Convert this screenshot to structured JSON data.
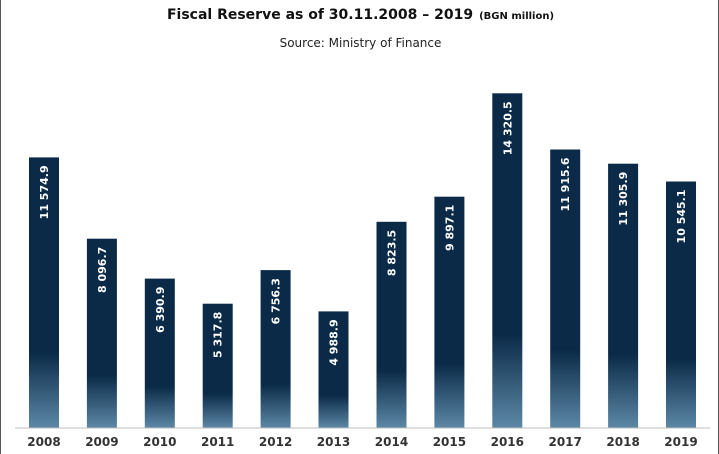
{
  "chart_data": {
    "type": "bar",
    "title": "Fiscal Reserve as of 30.11.2008 – 2019",
    "title_unit": "(BGN million)",
    "subtitle": "Source: Ministry of Finance",
    "categories": [
      "2008",
      "2009",
      "2010",
      "2011",
      "2012",
      "2013",
      "2014",
      "2015",
      "2016",
      "2017",
      "2018",
      "2019"
    ],
    "values": [
      11574.9,
      8096.7,
      6390.9,
      5317.8,
      6756.3,
      4988.9,
      8823.5,
      9897.1,
      14320.5,
      11915.6,
      11305.9,
      10545.1
    ],
    "value_labels": [
      "11 574.9",
      "8 096.7",
      "6 390.9",
      "5 317.8",
      "6 756.3",
      "4 988.9",
      "8 823.5",
      "9 897.1",
      "14 320.5",
      "11 915.6",
      "11 305.9",
      "10 545.1"
    ],
    "xlabel": "",
    "ylabel": "",
    "ylim": [
      0,
      16000
    ],
    "grid": false,
    "colors": {
      "bar_top": "#0a2a47",
      "bar_bottom": "#5c88a6",
      "label": "#ffffff",
      "axis": "#bfbfbf"
    }
  }
}
